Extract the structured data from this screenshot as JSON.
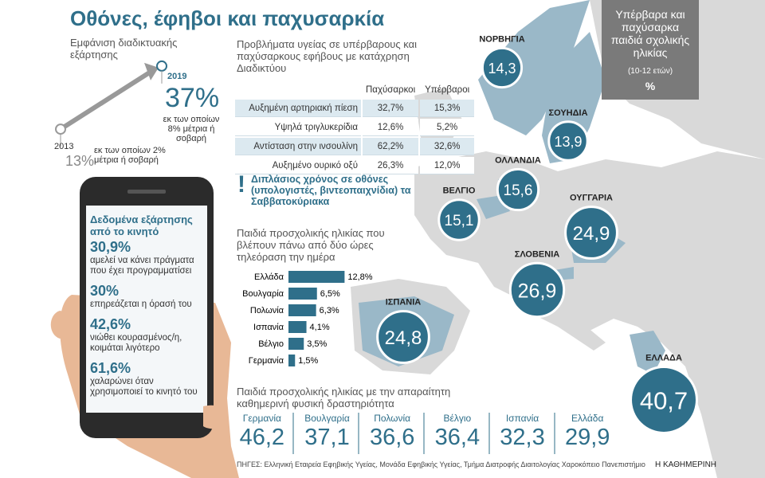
{
  "title": "Οθόνες, έφηβοι και παχυσαρκία",
  "addiction": {
    "label": "Εμφάνιση διαδικτυακής εξάρτησης",
    "points": [
      {
        "year": "2013",
        "value": 13,
        "value_label": "13%",
        "note": "εκ των οποίων 2% μέτρια ή σοβαρή"
      },
      {
        "year": "2019",
        "value": 37,
        "value_label": "37%",
        "note": "εκ των οποίων 8% μέτρια ή σοβαρή"
      }
    ]
  },
  "mobile": {
    "title": "Δεδομένα εξάρτησης από το κινητό",
    "items": [
      {
        "value": "30,9%",
        "text": "αμελεί να κάνει πράγματα που έχει προγραμματίσει"
      },
      {
        "value": "30%",
        "text": "επηρεάζεται η όρασή του"
      },
      {
        "value": "42,6%",
        "text": "νιώθει κουρασμένος/η, κοιμάται λιγότερο"
      },
      {
        "value": "61,6%",
        "text": "χαλαρώνει όταν χρησιμοποιεί το κινητό του"
      }
    ]
  },
  "health_table": {
    "title": "Προβλήματα υγείας σε υπέρβαρους και παχύσαρκους εφήβους με κατάχρηση Διαδικτύου",
    "columns": [
      "Παχύσαρκοι",
      "Υπέρβαροι"
    ],
    "rows": [
      [
        "Αυξημένη αρτηριακή πίεση",
        "32,7%",
        "15,3%"
      ],
      [
        "Υψηλά τριγλυκερίδια",
        "12,6%",
        "5,2%"
      ],
      [
        "Αντίσταση στην ινσουλίνη",
        "62,2%",
        "32,6%"
      ],
      [
        "Αυξημένο ουρικό οξύ",
        "26,3%",
        "12,0%"
      ]
    ]
  },
  "note": {
    "mark": "!",
    "text": "Διπλάσιος χρόνος σε οθόνες (υπολογιστές, βιντεοπαιχνίδια) τα Σαββατοκύριακα"
  },
  "tv_chart": {
    "type": "bar",
    "title": "Παιδιά προσχολικής ηλικίας που βλέπουν πάνω από δύο ώρες τηλεόραση την ημέρα",
    "categories": [
      "Ελλάδα",
      "Βουλγαρία",
      "Πολωνία",
      "Ισπανία",
      "Βέλγιο",
      "Γερμανία"
    ],
    "values": [
      12.8,
      6.5,
      6.3,
      4.1,
      3.5,
      1.5
    ],
    "value_labels": [
      "12,8%",
      "6,5%",
      "6,3%",
      "4,1%",
      "3,5%",
      "1,5%"
    ],
    "color": "#2f6f8a"
  },
  "activity": {
    "title": "Παιδιά προσχολικής ηλικίας με την απαραίτητη καθημερινή φυσική δραστηριότητα",
    "items": [
      {
        "country": "Γερμανία",
        "value": "46,2"
      },
      {
        "country": "Βουλγαρία",
        "value": "37,1"
      },
      {
        "country": "Πολωνία",
        "value": "36,6"
      },
      {
        "country": "Βέλγιο",
        "value": "36,4"
      },
      {
        "country": "Ισπανία",
        "value": "32,3"
      },
      {
        "country": "Ελλάδα",
        "value": "29,9"
      }
    ]
  },
  "map": {
    "title": "Υπέρβαρα και παχύσαρκα παιδιά σχολικής ηλικίας",
    "subtitle": "(10-12 ετών)",
    "unit": "%",
    "countries": [
      {
        "name": "ΝΟΡΒΗΓΙΑ",
        "value": 14.3,
        "value_label": "14,3"
      },
      {
        "name": "ΣΟΥΗΔΙΑ",
        "value": 13.9,
        "value_label": "13,9"
      },
      {
        "name": "ΟΛΛΑΝΔΙΑ",
        "value": 15.6,
        "value_label": "15,6"
      },
      {
        "name": "ΒΕΛΓΙΟ",
        "value": 15.1,
        "value_label": "15,1"
      },
      {
        "name": "ΟΥΓΓΑΡΙΑ",
        "value": 24.9,
        "value_label": "24,9"
      },
      {
        "name": "ΣΛΟΒΕΝΙΑ",
        "value": 26.9,
        "value_label": "26,9"
      },
      {
        "name": "ΙΣΠΑΝΙΑ",
        "value": 24.8,
        "value_label": "24,8"
      },
      {
        "name": "ΕΛΛΑΔΑ",
        "value": 40.7,
        "value_label": "40,7"
      }
    ]
  },
  "source": "ΠΗΓΕΣ: Ελληνική Εταιρεία Εφηβικής Υγείας, Μονάδα Εφηβικής Υγείας, Τμήμα Διατροφής Διαιτολογίας Χαροκόπειο Πανεπιστήμιο",
  "credit": "Η ΚΑΘΗΜΕΡΙΝΗ"
}
